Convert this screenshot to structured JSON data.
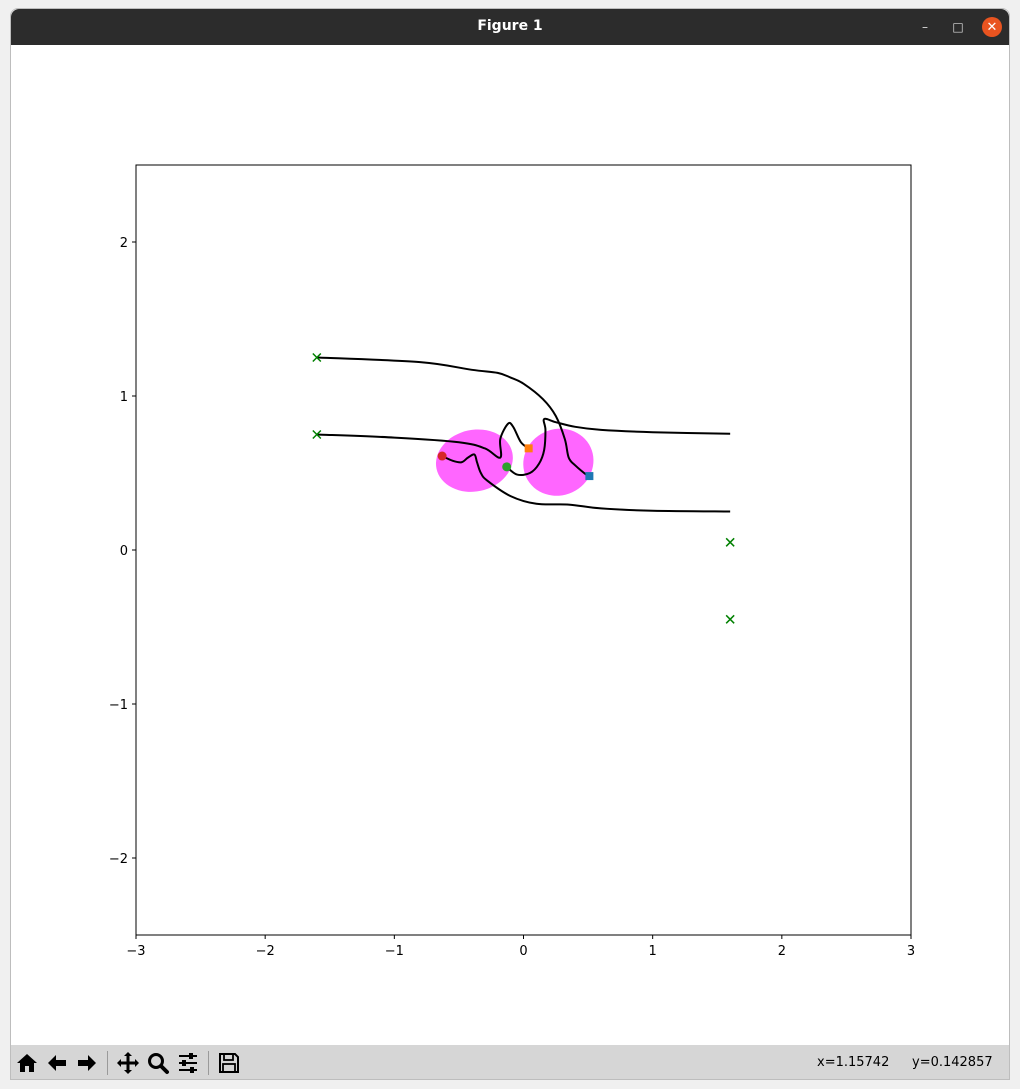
{
  "window": {
    "title": "Figure 1"
  },
  "controls": {
    "minimize": "–",
    "maximize": "□",
    "close": "✕"
  },
  "toolbar": {
    "buttons": [
      {
        "name": "home",
        "icon": "home-icon"
      },
      {
        "name": "back",
        "icon": "arrow-left-icon"
      },
      {
        "name": "forward",
        "icon": "arrow-right-icon"
      },
      {
        "name": "pan",
        "icon": "move-icon"
      },
      {
        "name": "zoom",
        "icon": "magnifier-icon"
      },
      {
        "name": "configure",
        "icon": "sliders-icon"
      },
      {
        "name": "save",
        "icon": "floppy-icon"
      }
    ],
    "x_readout": "x=1.15742",
    "y_readout": "y=0.142857"
  },
  "chart_data": {
    "type": "line",
    "xlim": [
      -3,
      3
    ],
    "ylim": [
      -2.5,
      2.5
    ],
    "xticks": [
      -3,
      -2,
      -1,
      0,
      1,
      2,
      3
    ],
    "yticks": [
      -2,
      -1,
      0,
      1,
      2
    ],
    "grid": false,
    "colors": {
      "paths": "#000000",
      "markers_x": "#008000",
      "ellipses": "#ff66ff"
    },
    "ellipses": [
      {
        "cx": -0.38,
        "cy": 0.58,
        "w": 0.6,
        "h": 0.4,
        "angle": -12
      },
      {
        "cx": 0.27,
        "cy": 0.57,
        "w": 0.55,
        "h": 0.43,
        "angle": -25
      }
    ],
    "x_markers": [
      {
        "x": -1.6,
        "y": 1.25
      },
      {
        "x": -1.6,
        "y": 0.75
      },
      {
        "x": 1.6,
        "y": 0.05
      },
      {
        "x": 1.6,
        "y": -0.45
      }
    ],
    "points": [
      {
        "x": 0.51,
        "y": 0.48,
        "shape": "square",
        "color": "#1f77b4"
      },
      {
        "x": 0.04,
        "y": 0.66,
        "shape": "square",
        "color": "#ff7f0e"
      },
      {
        "x": -0.13,
        "y": 0.54,
        "shape": "circle",
        "color": "#2ca02c"
      },
      {
        "x": -0.63,
        "y": 0.61,
        "shape": "circle",
        "color": "#d62728"
      }
    ],
    "paths": [
      [
        [
          -1.6,
          1.25
        ],
        [
          -0.8,
          1.22
        ],
        [
          -0.4,
          1.17
        ],
        [
          -0.2,
          1.15
        ],
        [
          -0.1,
          1.12
        ],
        [
          0.0,
          1.08
        ],
        [
          0.15,
          0.98
        ],
        [
          0.25,
          0.87
        ],
        [
          0.32,
          0.72
        ],
        [
          0.35,
          0.6
        ],
        [
          0.4,
          0.55
        ],
        [
          0.5,
          0.48
        ],
        [
          0.51,
          0.48
        ]
      ],
      [
        [
          -1.6,
          0.75
        ],
        [
          -1.0,
          0.73
        ],
        [
          -0.5,
          0.7
        ],
        [
          -0.3,
          0.66
        ],
        [
          -0.18,
          0.6
        ],
        [
          -0.18,
          0.72
        ],
        [
          -0.12,
          0.82
        ],
        [
          -0.08,
          0.8
        ],
        [
          -0.02,
          0.7
        ],
        [
          0.04,
          0.66
        ]
      ],
      [
        [
          -0.13,
          0.54
        ],
        [
          -0.05,
          0.49
        ],
        [
          0.05,
          0.5
        ],
        [
          0.12,
          0.56
        ],
        [
          0.16,
          0.65
        ],
        [
          0.17,
          0.78
        ],
        [
          0.16,
          0.85
        ],
        [
          0.25,
          0.83
        ],
        [
          0.4,
          0.8
        ],
        [
          0.6,
          0.78
        ],
        [
          1.0,
          0.765
        ],
        [
          1.6,
          0.755
        ]
      ],
      [
        [
          -0.63,
          0.61
        ],
        [
          -0.55,
          0.58
        ],
        [
          -0.48,
          0.57
        ],
        [
          -0.43,
          0.6
        ],
        [
          -0.38,
          0.62
        ],
        [
          -0.36,
          0.57
        ],
        [
          -0.33,
          0.5
        ],
        [
          -0.28,
          0.45
        ],
        [
          -0.1,
          0.35
        ],
        [
          0.1,
          0.3
        ],
        [
          0.35,
          0.295
        ],
        [
          0.6,
          0.27
        ],
        [
          1.0,
          0.255
        ],
        [
          1.6,
          0.25
        ]
      ]
    ]
  }
}
